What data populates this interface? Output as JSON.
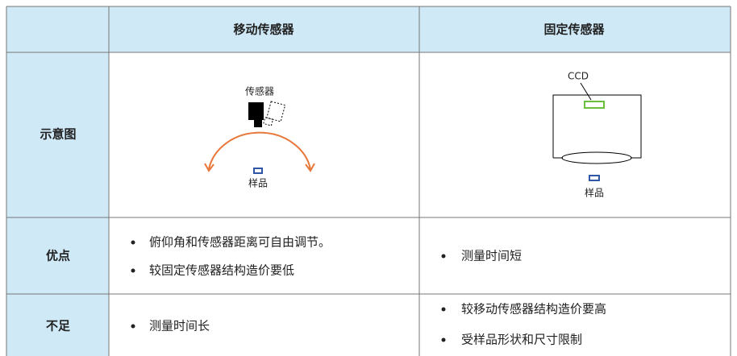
{
  "header": {
    "columns": [
      "移动传感器",
      "固定传感器"
    ]
  },
  "rows": [
    {
      "label": "示意图",
      "moving_diagram": {
        "sensor_label": "传感器",
        "sample_label": "样品"
      },
      "fixed_diagram": {
        "ccd_label": "CCD",
        "sample_label": "样品"
      }
    },
    {
      "label": "优点",
      "moving": [
        "俯仰角和传感器距离可自由调节。",
        "较固定传感器结构造价要低"
      ],
      "fixed": [
        "测量时间短"
      ]
    },
    {
      "label": "不足",
      "moving": [
        "测量时间长"
      ],
      "fixed": [
        "较移动传感器结构造价要高",
        "受样品形状和尺寸限制"
      ]
    }
  ]
}
